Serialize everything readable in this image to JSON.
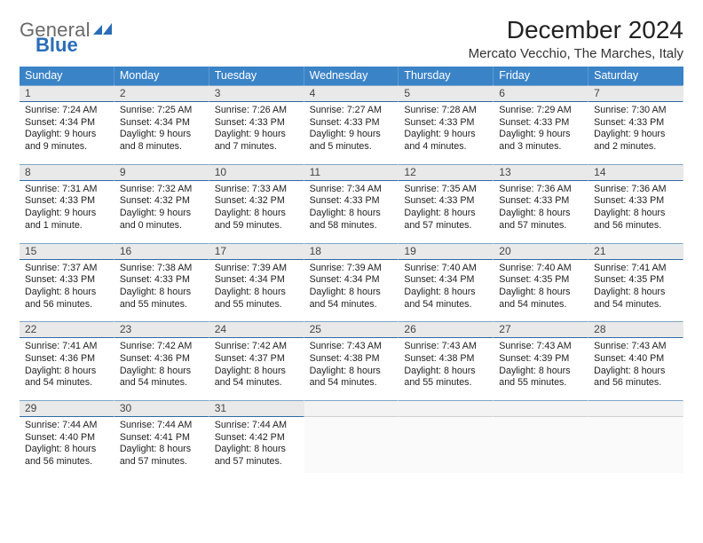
{
  "brand": {
    "line1": "General",
    "line2": "Blue",
    "flag_color": "#2a6db8"
  },
  "title": "December 2024",
  "location": "Mercato Vecchio, The Marches, Italy",
  "colors": {
    "header_bg": "#3b83c7",
    "header_text": "#ffffff",
    "daynum_bg": "#e9e9e9",
    "rule": "#2e6aa5"
  },
  "daysOfWeek": [
    "Sunday",
    "Monday",
    "Tuesday",
    "Wednesday",
    "Thursday",
    "Friday",
    "Saturday"
  ],
  "weeks": [
    [
      {
        "n": "1",
        "sr": "7:24 AM",
        "ss": "4:34 PM",
        "dl": "9 hours and 9 minutes."
      },
      {
        "n": "2",
        "sr": "7:25 AM",
        "ss": "4:34 PM",
        "dl": "9 hours and 8 minutes."
      },
      {
        "n": "3",
        "sr": "7:26 AM",
        "ss": "4:33 PM",
        "dl": "9 hours and 7 minutes."
      },
      {
        "n": "4",
        "sr": "7:27 AM",
        "ss": "4:33 PM",
        "dl": "9 hours and 5 minutes."
      },
      {
        "n": "5",
        "sr": "7:28 AM",
        "ss": "4:33 PM",
        "dl": "9 hours and 4 minutes."
      },
      {
        "n": "6",
        "sr": "7:29 AM",
        "ss": "4:33 PM",
        "dl": "9 hours and 3 minutes."
      },
      {
        "n": "7",
        "sr": "7:30 AM",
        "ss": "4:33 PM",
        "dl": "9 hours and 2 minutes."
      }
    ],
    [
      {
        "n": "8",
        "sr": "7:31 AM",
        "ss": "4:33 PM",
        "dl": "9 hours and 1 minute."
      },
      {
        "n": "9",
        "sr": "7:32 AM",
        "ss": "4:32 PM",
        "dl": "9 hours and 0 minutes."
      },
      {
        "n": "10",
        "sr": "7:33 AM",
        "ss": "4:32 PM",
        "dl": "8 hours and 59 minutes."
      },
      {
        "n": "11",
        "sr": "7:34 AM",
        "ss": "4:33 PM",
        "dl": "8 hours and 58 minutes."
      },
      {
        "n": "12",
        "sr": "7:35 AM",
        "ss": "4:33 PM",
        "dl": "8 hours and 57 minutes."
      },
      {
        "n": "13",
        "sr": "7:36 AM",
        "ss": "4:33 PM",
        "dl": "8 hours and 57 minutes."
      },
      {
        "n": "14",
        "sr": "7:36 AM",
        "ss": "4:33 PM",
        "dl": "8 hours and 56 minutes."
      }
    ],
    [
      {
        "n": "15",
        "sr": "7:37 AM",
        "ss": "4:33 PM",
        "dl": "8 hours and 56 minutes."
      },
      {
        "n": "16",
        "sr": "7:38 AM",
        "ss": "4:33 PM",
        "dl": "8 hours and 55 minutes."
      },
      {
        "n": "17",
        "sr": "7:39 AM",
        "ss": "4:34 PM",
        "dl": "8 hours and 55 minutes."
      },
      {
        "n": "18",
        "sr": "7:39 AM",
        "ss": "4:34 PM",
        "dl": "8 hours and 54 minutes."
      },
      {
        "n": "19",
        "sr": "7:40 AM",
        "ss": "4:34 PM",
        "dl": "8 hours and 54 minutes."
      },
      {
        "n": "20",
        "sr": "7:40 AM",
        "ss": "4:35 PM",
        "dl": "8 hours and 54 minutes."
      },
      {
        "n": "21",
        "sr": "7:41 AM",
        "ss": "4:35 PM",
        "dl": "8 hours and 54 minutes."
      }
    ],
    [
      {
        "n": "22",
        "sr": "7:41 AM",
        "ss": "4:36 PM",
        "dl": "8 hours and 54 minutes."
      },
      {
        "n": "23",
        "sr": "7:42 AM",
        "ss": "4:36 PM",
        "dl": "8 hours and 54 minutes."
      },
      {
        "n": "24",
        "sr": "7:42 AM",
        "ss": "4:37 PM",
        "dl": "8 hours and 54 minutes."
      },
      {
        "n": "25",
        "sr": "7:43 AM",
        "ss": "4:38 PM",
        "dl": "8 hours and 54 minutes."
      },
      {
        "n": "26",
        "sr": "7:43 AM",
        "ss": "4:38 PM",
        "dl": "8 hours and 55 minutes."
      },
      {
        "n": "27",
        "sr": "7:43 AM",
        "ss": "4:39 PM",
        "dl": "8 hours and 55 minutes."
      },
      {
        "n": "28",
        "sr": "7:43 AM",
        "ss": "4:40 PM",
        "dl": "8 hours and 56 minutes."
      }
    ],
    [
      {
        "n": "29",
        "sr": "7:44 AM",
        "ss": "4:40 PM",
        "dl": "8 hours and 56 minutes."
      },
      {
        "n": "30",
        "sr": "7:44 AM",
        "ss": "4:41 PM",
        "dl": "8 hours and 57 minutes."
      },
      {
        "n": "31",
        "sr": "7:44 AM",
        "ss": "4:42 PM",
        "dl": "8 hours and 57 minutes."
      },
      null,
      null,
      null,
      null
    ]
  ],
  "labels": {
    "sunrise": "Sunrise:",
    "sunset": "Sunset:",
    "daylight": "Daylight:"
  }
}
